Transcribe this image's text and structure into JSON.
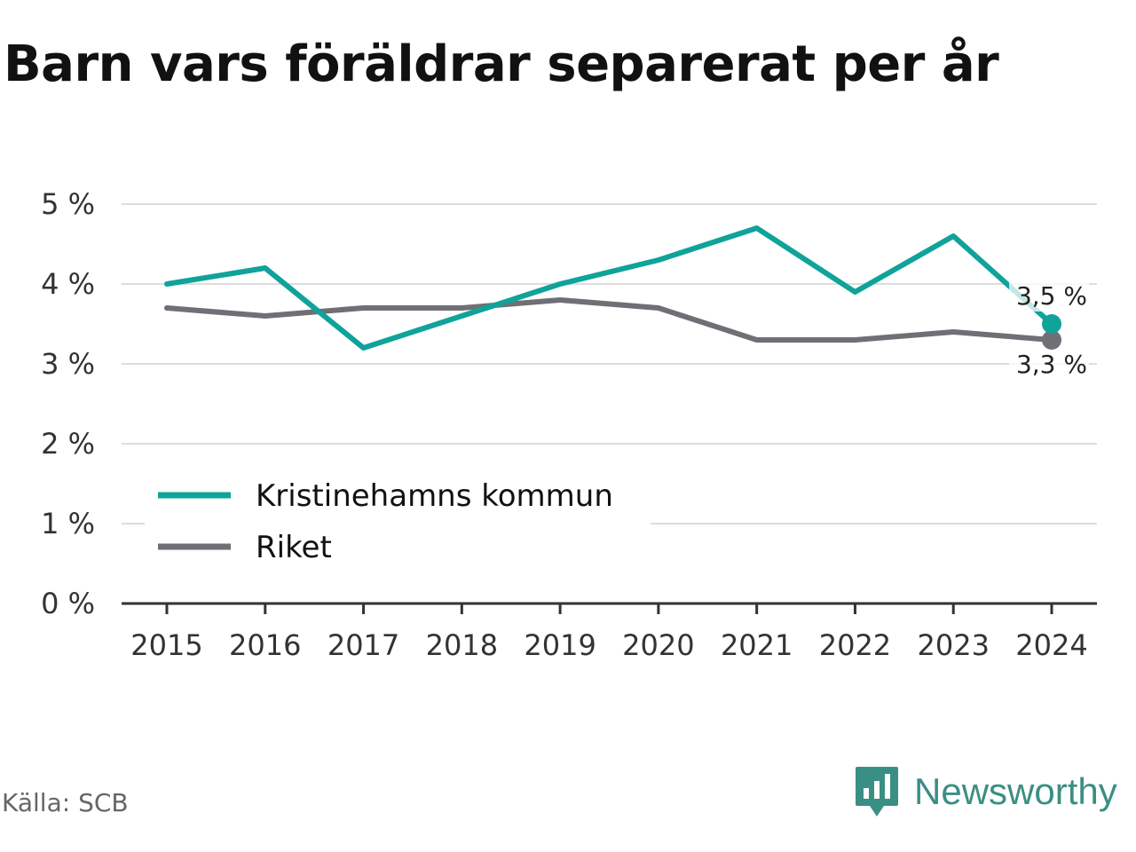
{
  "chart_data": {
    "type": "line",
    "title": "Barn vars föräldrar separerat per år",
    "x": [
      "2015",
      "2016",
      "2017",
      "2018",
      "2019",
      "2020",
      "2021",
      "2022",
      "2023",
      "2024"
    ],
    "ylim": [
      0,
      5
    ],
    "y_ticks": [
      "0 %",
      "1 %",
      "2 %",
      "3 %",
      "4 %",
      "5 %"
    ],
    "grid": true,
    "legend_position": "bottom-left",
    "series": [
      {
        "name": "Kristinehamns kommun",
        "color": "#0fa39a",
        "values": [
          4.0,
          4.2,
          3.2,
          3.6,
          4.0,
          4.3,
          4.7,
          3.9,
          4.6,
          3.5
        ],
        "end_label": "3,5 %"
      },
      {
        "name": "Riket",
        "color": "#6f6f76",
        "values": [
          3.7,
          3.6,
          3.7,
          3.7,
          3.8,
          3.7,
          3.3,
          3.3,
          3.4,
          3.3
        ],
        "end_label": "3,3 %"
      }
    ]
  },
  "source": "Källa: SCB",
  "brand": {
    "name": "Newsworthy",
    "color": "#3a8f84",
    "icon": "newsworthy-logo-icon"
  }
}
